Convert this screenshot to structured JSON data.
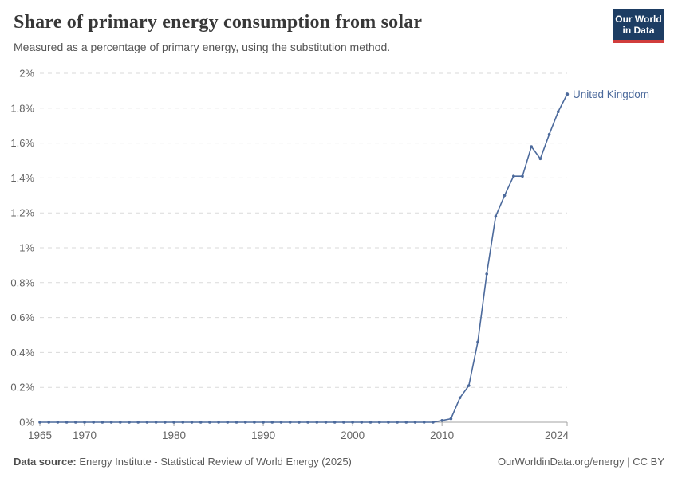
{
  "header": {
    "title": "Share of primary energy consumption from solar",
    "subtitle": "Measured as a percentage of primary energy, using the substitution method.",
    "logo": {
      "line1": "Our World",
      "line2": "in Data"
    }
  },
  "chart_data": {
    "type": "line",
    "title": "Share of primary energy consumption from solar",
    "xlabel": "",
    "ylabel": "",
    "xlim": [
      1965,
      2024
    ],
    "ylim": [
      0,
      2
    ],
    "grid": "horizontal-dashed",
    "legend_position": "end-of-line-label",
    "x_ticks": [
      1965,
      1970,
      1980,
      1990,
      2000,
      2010,
      2024
    ],
    "y_ticks": [
      0,
      0.2,
      0.4,
      0.6,
      0.8,
      1,
      1.2,
      1.4,
      1.6,
      1.8,
      2
    ],
    "y_tick_suffix": "%",
    "series": [
      {
        "name": "United Kingdom",
        "color": "#4c6a9c",
        "x": [
          1965,
          1966,
          1967,
          1968,
          1969,
          1970,
          1971,
          1972,
          1973,
          1974,
          1975,
          1976,
          1977,
          1978,
          1979,
          1980,
          1981,
          1982,
          1983,
          1984,
          1985,
          1986,
          1987,
          1988,
          1989,
          1990,
          1991,
          1992,
          1993,
          1994,
          1995,
          1996,
          1997,
          1998,
          1999,
          2000,
          2001,
          2002,
          2003,
          2004,
          2005,
          2006,
          2007,
          2008,
          2009,
          2010,
          2011,
          2012,
          2013,
          2014,
          2015,
          2016,
          2017,
          2018,
          2019,
          2020,
          2021,
          2022,
          2023,
          2024
        ],
        "values": [
          0,
          0,
          0,
          0,
          0,
          0,
          0,
          0,
          0,
          0,
          0,
          0,
          0,
          0,
          0,
          0,
          0,
          0,
          0,
          0,
          0,
          0,
          0,
          0,
          0,
          0,
          0,
          0,
          0,
          0,
          0,
          0,
          0,
          0,
          0,
          0,
          0,
          0,
          0,
          0,
          0,
          0,
          0,
          0,
          0,
          0.01,
          0.02,
          0.14,
          0.21,
          0.46,
          0.85,
          1.18,
          1.3,
          1.41,
          1.41,
          1.58,
          1.51,
          1.65,
          1.78,
          1.88
        ]
      }
    ]
  },
  "footer": {
    "source_label": "Data source:",
    "source_text": " Energy Institute - Statistical Review of World Energy (2025)",
    "right_text": "OurWorldinData.org/energy | CC BY"
  },
  "colors": {
    "line": "#4c6a9c",
    "grid": "#dadada",
    "axis": "#a3a3a3",
    "tick_text": "#636363",
    "logo_bg": "#1d3d63",
    "logo_red": "#d13d3c"
  }
}
